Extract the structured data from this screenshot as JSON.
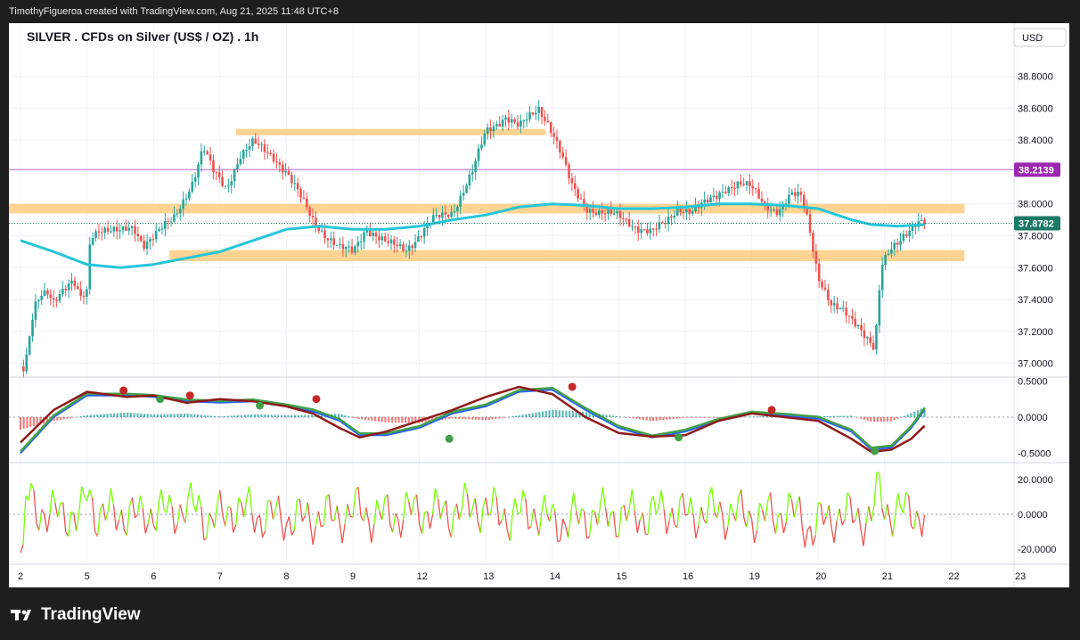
{
  "header": {
    "credit": "TimothyFigueroa created with TradingView.com, Aug 21, 2025 11:48 UTC+8"
  },
  "footer": {
    "brand": "TradingView"
  },
  "colors": {
    "up": "#26a69a",
    "down": "#ef5350",
    "ma": "#26c6da",
    "zone": "#ffcc80",
    "level": "#ce93d8",
    "price_tag": "#1b7a67",
    "level_tag": "#9c27b0",
    "macd_fast": "#8e1b1b",
    "macd_signal": "#43a047",
    "macd_blue": "#2962ff",
    "osc_up": "#76ff03",
    "osc_down": "#ef5350"
  },
  "chart_data": {
    "type": "candlestick",
    "title": "SILVER . CFDs on Silver (US$ / OZ) . 1h",
    "currency": "USD",
    "x_labels": [
      "2",
      "5",
      "6",
      "7",
      "8",
      "9",
      "12",
      "13",
      "14",
      "15",
      "16",
      "19",
      "20",
      "21",
      "22",
      "23"
    ],
    "price_axis": {
      "ticks": [
        "38.8000",
        "38.6000",
        "38.4000",
        "38.2000",
        "38.0000",
        "37.8000",
        "37.6000",
        "37.4000",
        "37.2000",
        "37.0000"
      ],
      "ylim": [
        36.92,
        38.92
      ]
    },
    "last_price": "37.8782",
    "level_price": "38.2139",
    "levels": [
      {
        "name": "resistance-zone-upper",
        "low": 38.43,
        "high": 38.47,
        "from_day": "7",
        "to_day": "15"
      },
      {
        "name": "mid-zone",
        "low": 37.94,
        "high": 38.0,
        "from_day": "2",
        "to_day": "22"
      },
      {
        "name": "support-zone",
        "low": 37.64,
        "high": 37.71,
        "from_day": "6",
        "to_day": "22"
      },
      {
        "name": "level-line",
        "value": 38.2139
      }
    ],
    "price_path": [
      [
        0,
        36.98
      ],
      [
        0.06,
        36.95
      ],
      [
        0.1,
        37.05
      ],
      [
        0.15,
        37.2
      ],
      [
        0.22,
        37.35
      ],
      [
        0.3,
        37.42
      ],
      [
        0.4,
        37.46
      ],
      [
        0.5,
        37.4
      ],
      [
        0.6,
        37.45
      ],
      [
        0.7,
        37.48
      ],
      [
        0.8,
        37.5
      ],
      [
        0.9,
        37.4
      ],
      [
        1.0,
        37.45
      ],
      [
        1.05,
        37.8
      ],
      [
        1.2,
        37.85
      ],
      [
        1.5,
        37.82
      ],
      [
        1.7,
        37.85
      ],
      [
        1.85,
        37.75
      ],
      [
        2.0,
        37.8
      ],
      [
        2.3,
        37.9
      ],
      [
        2.6,
        38.15
      ],
      [
        2.75,
        38.35
      ],
      [
        2.9,
        38.2
      ],
      [
        3.1,
        38.1
      ],
      [
        3.3,
        38.3
      ],
      [
        3.5,
        38.38
      ],
      [
        3.8,
        38.3
      ],
      [
        4.0,
        38.2
      ],
      [
        4.2,
        38.05
      ],
      [
        4.4,
        37.9
      ],
      [
        4.6,
        37.8
      ],
      [
        4.8,
        37.72
      ],
      [
        5.0,
        37.7
      ],
      [
        5.2,
        37.85
      ],
      [
        5.5,
        37.75
      ],
      [
        5.8,
        37.72
      ],
      [
        6.0,
        37.8
      ],
      [
        6.2,
        37.9
      ],
      [
        6.5,
        37.95
      ],
      [
        6.8,
        38.2
      ],
      [
        7.0,
        38.45
      ],
      [
        7.3,
        38.55
      ],
      [
        7.5,
        38.48
      ],
      [
        7.8,
        38.6
      ],
      [
        7.95,
        38.5
      ],
      [
        8.1,
        38.35
      ],
      [
        8.3,
        38.1
      ],
      [
        8.5,
        37.98
      ],
      [
        8.7,
        37.95
      ],
      [
        9.0,
        37.92
      ],
      [
        9.3,
        37.85
      ],
      [
        9.5,
        37.82
      ],
      [
        9.7,
        37.88
      ],
      [
        9.9,
        37.98
      ],
      [
        10.1,
        37.95
      ],
      [
        10.3,
        38.0
      ],
      [
        10.6,
        38.1
      ],
      [
        10.8,
        38.12
      ],
      [
        11.0,
        38.1
      ],
      [
        11.2,
        38.0
      ],
      [
        11.4,
        37.95
      ],
      [
        11.6,
        38.05
      ],
      [
        11.75,
        38.05
      ],
      [
        11.85,
        37.9
      ],
      [
        12.0,
        37.55
      ],
      [
        12.2,
        37.35
      ],
      [
        12.4,
        37.32
      ],
      [
        12.6,
        37.25
      ],
      [
        12.75,
        37.15
      ],
      [
        12.85,
        37.08
      ],
      [
        12.95,
        37.6
      ],
      [
        13.1,
        37.72
      ],
      [
        13.3,
        37.82
      ],
      [
        13.5,
        37.88
      ],
      [
        13.6,
        37.87
      ]
    ],
    "moving_average_path": [
      [
        0,
        37.77
      ],
      [
        0.5,
        37.7
      ],
      [
        1.0,
        37.62
      ],
      [
        1.5,
        37.6
      ],
      [
        2.0,
        37.62
      ],
      [
        3.0,
        37.7
      ],
      [
        3.5,
        37.77
      ],
      [
        4.0,
        37.84
      ],
      [
        4.5,
        37.86
      ],
      [
        5.0,
        37.84
      ],
      [
        5.5,
        37.84
      ],
      [
        6.0,
        37.86
      ],
      [
        6.5,
        37.9
      ],
      [
        7.0,
        37.93
      ],
      [
        7.5,
        37.98
      ],
      [
        8.0,
        38.0
      ],
      [
        8.5,
        37.99
      ],
      [
        9.0,
        37.97
      ],
      [
        9.5,
        37.97
      ],
      [
        10.0,
        37.98
      ],
      [
        10.5,
        38.0
      ],
      [
        11.0,
        38.0
      ],
      [
        11.5,
        37.99
      ],
      [
        12.0,
        37.97
      ],
      [
        12.5,
        37.9
      ],
      [
        12.8,
        37.87
      ],
      [
        13.2,
        37.86
      ],
      [
        13.6,
        37.87
      ]
    ],
    "macd": {
      "ticks": [
        "0.5000",
        "0.0000",
        "-0.5000"
      ],
      "fast_path": [
        [
          0,
          -0.35
        ],
        [
          0.5,
          0.1
        ],
        [
          1.0,
          0.35
        ],
        [
          1.6,
          0.28
        ],
        [
          2.0,
          0.3
        ],
        [
          2.5,
          0.2
        ],
        [
          3.0,
          0.25
        ],
        [
          3.5,
          0.22
        ],
        [
          4.0,
          0.15
        ],
        [
          4.4,
          0.05
        ],
        [
          4.8,
          -0.15
        ],
        [
          5.1,
          -0.28
        ],
        [
          5.5,
          -0.2
        ],
        [
          6.0,
          -0.05
        ],
        [
          6.5,
          0.1
        ],
        [
          7.0,
          0.28
        ],
        [
          7.5,
          0.42
        ],
        [
          8.0,
          0.32
        ],
        [
          8.5,
          0.0
        ],
        [
          9.0,
          -0.22
        ],
        [
          9.5,
          -0.27
        ],
        [
          10.0,
          -0.25
        ],
        [
          10.5,
          -0.05
        ],
        [
          11.0,
          0.05
        ],
        [
          11.5,
          0.0
        ],
        [
          12.0,
          -0.05
        ],
        [
          12.5,
          -0.3
        ],
        [
          12.8,
          -0.48
        ],
        [
          13.1,
          -0.45
        ],
        [
          13.4,
          -0.3
        ],
        [
          13.6,
          -0.12
        ]
      ],
      "signal_path": [
        [
          0,
          -0.5
        ],
        [
          0.5,
          0.0
        ],
        [
          1.0,
          0.3
        ],
        [
          1.6,
          0.3
        ],
        [
          2.0,
          0.28
        ],
        [
          2.5,
          0.22
        ],
        [
          3.0,
          0.2
        ],
        [
          3.5,
          0.22
        ],
        [
          4.0,
          0.15
        ],
        [
          4.4,
          0.08
        ],
        [
          4.8,
          -0.05
        ],
        [
          5.1,
          -0.25
        ],
        [
          5.5,
          -0.25
        ],
        [
          6.0,
          -0.15
        ],
        [
          6.5,
          0.05
        ],
        [
          7.0,
          0.15
        ],
        [
          7.5,
          0.35
        ],
        [
          8.0,
          0.38
        ],
        [
          8.5,
          0.1
        ],
        [
          9.0,
          -0.15
        ],
        [
          9.5,
          -0.28
        ],
        [
          10.0,
          -0.2
        ],
        [
          10.5,
          -0.05
        ],
        [
          11.0,
          0.05
        ],
        [
          11.5,
          0.02
        ],
        [
          12.0,
          -0.02
        ],
        [
          12.5,
          -0.2
        ],
        [
          12.8,
          -0.45
        ],
        [
          13.1,
          -0.42
        ],
        [
          13.4,
          -0.15
        ],
        [
          13.6,
          0.1
        ]
      ],
      "dot_points": [
        {
          "x": 1.55,
          "y": 0.37,
          "kind": "red"
        },
        {
          "x": 2.1,
          "y": 0.25,
          "kind": "green"
        },
        {
          "x": 2.55,
          "y": 0.3,
          "kind": "red"
        },
        {
          "x": 3.6,
          "y": 0.16,
          "kind": "green"
        },
        {
          "x": 4.45,
          "y": 0.25,
          "kind": "red"
        },
        {
          "x": 6.45,
          "y": -0.3,
          "kind": "green"
        },
        {
          "x": 8.3,
          "y": 0.42,
          "kind": "red"
        },
        {
          "x": 9.9,
          "y": -0.28,
          "kind": "green"
        },
        {
          "x": 11.3,
          "y": 0.1,
          "kind": "red"
        },
        {
          "x": 12.85,
          "y": -0.47,
          "kind": "green"
        }
      ]
    },
    "oscillator": {
      "ticks": [
        "20.0000",
        "0.0000",
        "-20.0000"
      ]
    }
  }
}
